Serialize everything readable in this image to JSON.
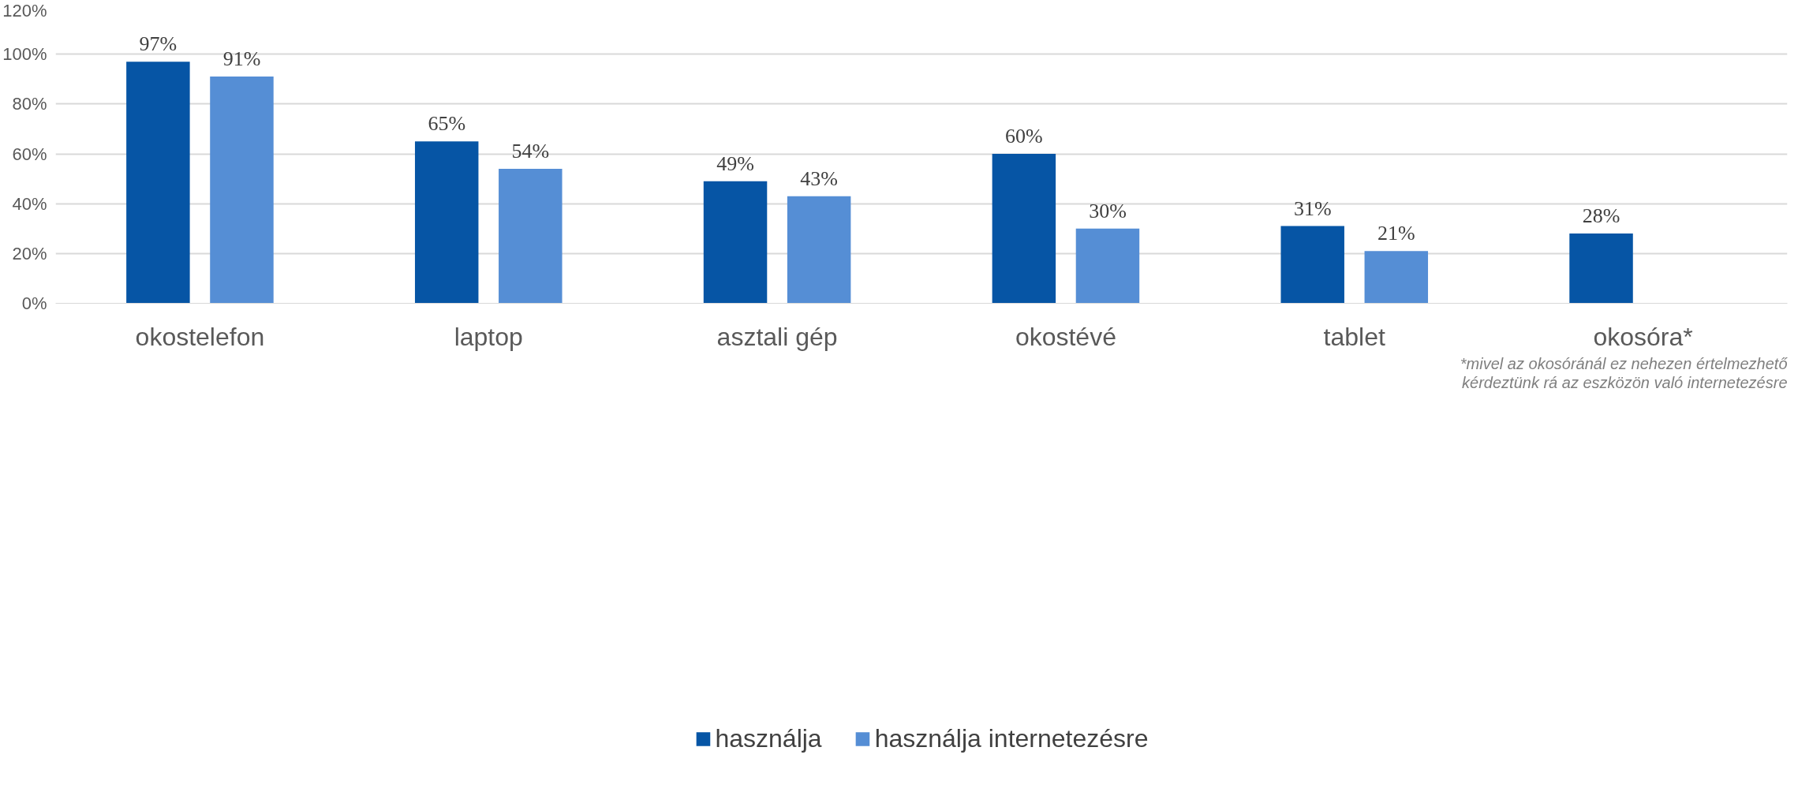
{
  "chart_data": {
    "type": "bar",
    "categories": [
      "okostelefon",
      "laptop",
      "asztali gép",
      "okostévé",
      "tablet",
      "okosóra*"
    ],
    "series": [
      {
        "name": "használja",
        "color": "#0655a5",
        "values": [
          97,
          65,
          49,
          60,
          31,
          28
        ]
      },
      {
        "name": "használja internetezésre",
        "color": "#558ed5",
        "values": [
          91,
          54,
          43,
          30,
          21,
          null
        ]
      }
    ],
    "ylim": [
      0,
      120
    ],
    "yticks": [
      {
        "value": 0,
        "label": "0%"
      },
      {
        "value": 20,
        "label": "20%"
      },
      {
        "value": 40,
        "label": "40%"
      },
      {
        "value": 60,
        "label": "60%"
      },
      {
        "value": 80,
        "label": "80%"
      },
      {
        "value": 100,
        "label": "100%"
      },
      {
        "value": 120,
        "label": "120%"
      }
    ],
    "grid": "y",
    "legend": "bottom",
    "value_labels": [
      [
        "97%",
        "65%",
        "49%",
        "60%",
        "31%",
        "28%"
      ],
      [
        "91%",
        "54%",
        "43%",
        "30%",
        "21%",
        null
      ]
    ],
    "annotations": [
      "*mivel az okosóránál ez nehezen értelmezhető",
      "kérdeztünk rá az eszközön való internetezésre"
    ]
  }
}
